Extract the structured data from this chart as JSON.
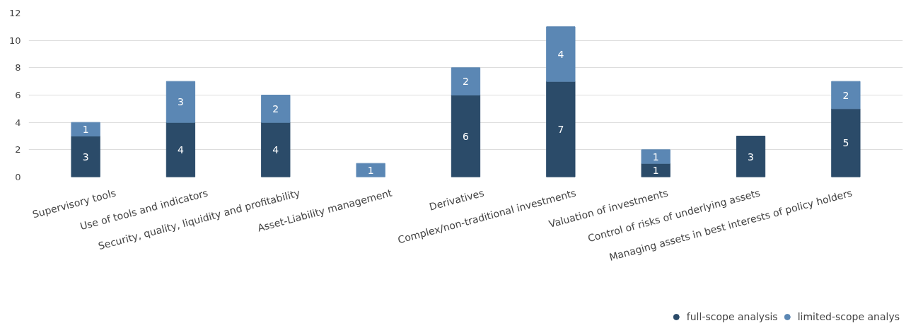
{
  "chart_data": {
    "type": "bar",
    "stacked": true,
    "categories": [
      "Supervisory tools",
      "Use of tools and indicators",
      "Security, quality, liquidity and profitability",
      "Asset-Liability management",
      "Derivatives",
      "Complex/non-traditional investments",
      "Valuation of investments",
      "Control of risks of underlying assets",
      "Managing assets in best interests of policy holders"
    ],
    "series": [
      {
        "name": "full-scope analysis",
        "color": "#2b4b69",
        "values": [
          3,
          4,
          4,
          null,
          6,
          7,
          1,
          3,
          5
        ]
      },
      {
        "name": "limited-scope analys",
        "color": "#5b87b4",
        "values": [
          1,
          3,
          2,
          1,
          2,
          4,
          1,
          null,
          2
        ]
      }
    ],
    "ylim": [
      0,
      12
    ],
    "yticks": [
      0,
      2,
      4,
      6,
      8,
      10,
      12
    ],
    "grid": "y",
    "legend": "bottom right",
    "data_labels": true
  }
}
